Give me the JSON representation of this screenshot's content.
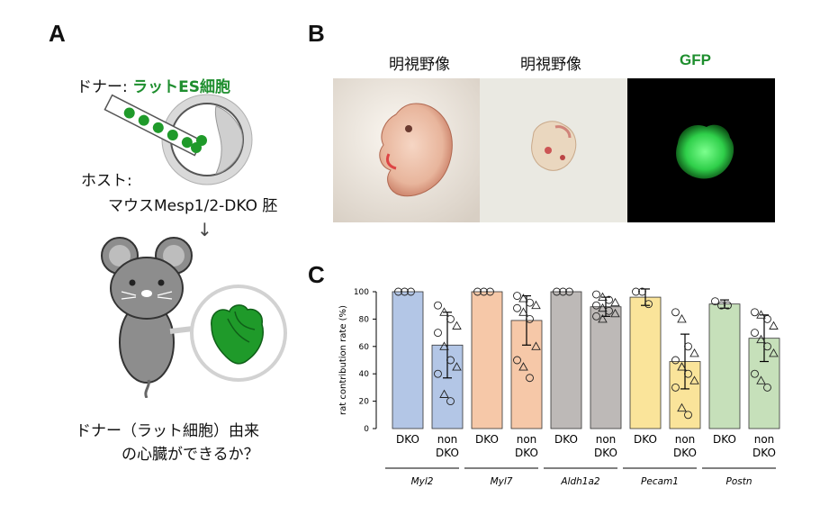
{
  "panels": {
    "a": "A",
    "b": "B",
    "c": "C"
  },
  "panel_a": {
    "donor_prefix": "ドナー: ",
    "donor_name": "ラットES細胞",
    "host_label": "ホスト:",
    "host_name": "マウスMesp1/2-DKO 胚",
    "question_line1": "ドナー（ラット細胞）由来",
    "question_line2": "の心臓ができるか？",
    "colors": {
      "donor_green": "#1e8e2e",
      "heart_green": "#1f9a2a",
      "mouse_gray": "#8d8d8d"
    }
  },
  "panel_b": {
    "labels": [
      "明視野像",
      "明視野像",
      "GFP"
    ],
    "gfp_color": "#1e8e2e"
  },
  "chart_data": {
    "type": "bar",
    "ylabel": "rat contribution rate (%)",
    "ylim": [
      0,
      100
    ],
    "yticks": [
      0,
      20,
      40,
      60,
      80,
      100
    ],
    "groups": [
      {
        "gene": "Myl2",
        "color": "#b3c6e6",
        "bars": [
          {
            "label": "DKO",
            "mean": 100,
            "err": 0,
            "marker": "circle",
            "points": [
              100,
              100,
              100
            ]
          },
          {
            "label": "non DKO",
            "mean": 61,
            "err": 24,
            "marker": "mixed",
            "points": [
              90,
              85,
              80,
              75,
              70,
              60,
              50,
              45,
              40,
              25,
              20
            ]
          }
        ]
      },
      {
        "gene": "Myl7",
        "color": "#f6c8a8",
        "bars": [
          {
            "label": "DKO",
            "mean": 100,
            "err": 0,
            "marker": "circle",
            "points": [
              100,
              100,
              100
            ]
          },
          {
            "label": "non DKO",
            "mean": 79,
            "err": 18,
            "marker": "mixed",
            "points": [
              97,
              95,
              92,
              90,
              88,
              85,
              80,
              60,
              50,
              45,
              37
            ]
          }
        ]
      },
      {
        "gene": "Aldh1a2",
        "color": "#bdb9b7",
        "bars": [
          {
            "label": "DKO",
            "mean": 100,
            "err": 0,
            "marker": "circle",
            "points": [
              100,
              100,
              100
            ]
          },
          {
            "label": "non DKO",
            "mean": 89,
            "err": 7,
            "marker": "mixed",
            "points": [
              98,
              96,
              94,
              92,
              90,
              88,
              86,
              84,
              82,
              80
            ]
          }
        ]
      },
      {
        "gene": "Pecam1",
        "color": "#fae49a",
        "bars": [
          {
            "label": "DKO",
            "mean": 96,
            "err": 6,
            "marker": "circle",
            "points": [
              100,
              100,
              91
            ]
          },
          {
            "label": "non DKO",
            "mean": 49,
            "err": 20,
            "marker": "mixed",
            "points": [
              85,
              80,
              60,
              55,
              50,
              45,
              40,
              35,
              30,
              15,
              10
            ]
          }
        ]
      },
      {
        "gene": "Postn",
        "color": "#c6e0ba",
        "bars": [
          {
            "label": "DKO",
            "mean": 91,
            "err": 3,
            "marker": "circle",
            "points": [
              93,
              90,
              90
            ]
          },
          {
            "label": "non DKO",
            "mean": 66,
            "err": 17,
            "marker": "mixed",
            "points": [
              85,
              83,
              80,
              75,
              70,
              65,
              60,
              55,
              40,
              35,
              30
            ]
          }
        ]
      }
    ]
  }
}
